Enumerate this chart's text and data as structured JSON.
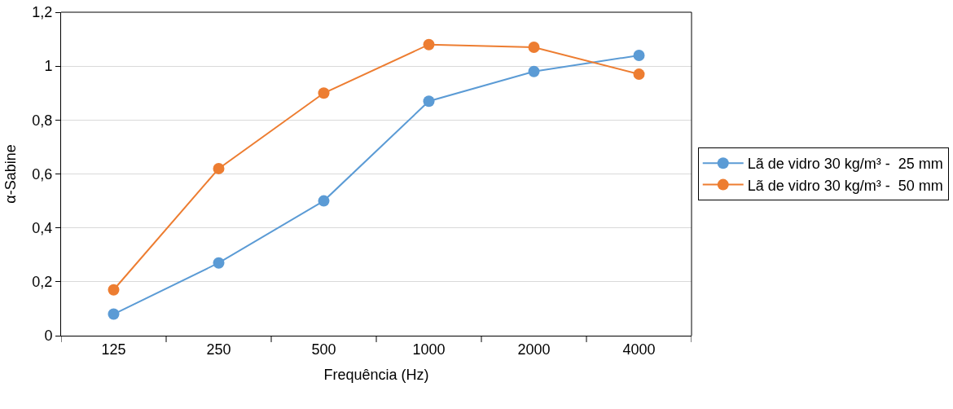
{
  "chart_data": {
    "type": "line",
    "xlabel": "Frequência (Hz)",
    "ylabel": "α-Sabine",
    "categories": [
      "125",
      "250",
      "500",
      "1000",
      "2000",
      "4000"
    ],
    "series": [
      {
        "name": "Lã de vidro 30 kg/m³ -  25 mm",
        "color": "#5b9bd5",
        "values": [
          0.08,
          0.27,
          0.5,
          0.87,
          0.98,
          1.04
        ]
      },
      {
        "name": "Lã de vidro 30 kg/m³ -  50 mm",
        "color": "#ed7d31",
        "values": [
          0.17,
          0.62,
          0.9,
          1.08,
          1.07,
          0.97
        ]
      }
    ],
    "ylim": [
      0,
      1.2
    ],
    "yticks": [
      0,
      {
        "value": 0.2,
        "label": "0,2"
      },
      {
        "value": 0.4,
        "label": "0,4"
      },
      {
        "value": 0.6,
        "label": "0,6"
      },
      {
        "value": 0.8,
        "label": "0,8"
      },
      1,
      {
        "value": 1.2,
        "label": "1,2"
      }
    ],
    "grid": "y",
    "legend": "right",
    "marker": "circle",
    "line_style": "solid"
  }
}
